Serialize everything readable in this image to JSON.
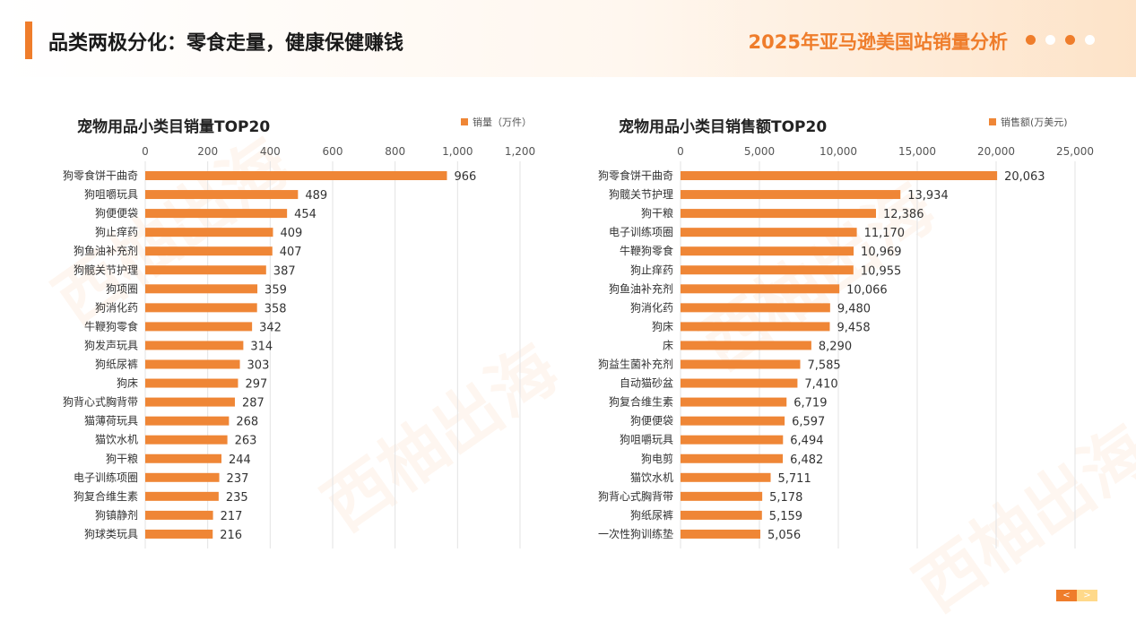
{
  "header": {
    "title": "品类两极分化：零食走量，健康保健赚钱",
    "report_title": "2025年亚马逊美国站销量分析",
    "dot_colors": [
      "#ef7d2b",
      "#ffffff",
      "#ef7d2b",
      "#ffffff"
    ]
  },
  "watermark": "西柚出海",
  "colors": {
    "accent": "#ef7d2b",
    "bar": "#ef8636",
    "grid": "#e3e3e3"
  },
  "chart_data": [
    {
      "type": "bar",
      "orientation": "horizontal",
      "title": "宠物用品小类目销量TOP20",
      "legend": "销量（万件）",
      "legend_position": "top-right",
      "axis_position": "top",
      "xlim": [
        0,
        1200
      ],
      "ticks": [
        0,
        200,
        400,
        600,
        800,
        1000,
        1200
      ],
      "tick_labels": [
        "0",
        "200",
        "400",
        "600",
        "800",
        "1,000",
        "1,200"
      ],
      "grid": true,
      "categories": [
        "狗零食饼干曲奇",
        "狗咀嚼玩具",
        "狗便便袋",
        "狗止痒药",
        "狗鱼油补充剂",
        "狗髋关节护理",
        "狗项圈",
        "狗消化药",
        "牛鞭狗零食",
        "狗发声玩具",
        "狗纸尿裤",
        "狗床",
        "狗背心式胸背带",
        "猫薄荷玩具",
        "猫饮水机",
        "狗干粮",
        "电子训练项圈",
        "狗复合维生素",
        "狗镇静剂",
        "狗球类玩具"
      ],
      "values": [
        966,
        489,
        454,
        409,
        407,
        387,
        359,
        358,
        342,
        314,
        303,
        297,
        287,
        268,
        263,
        244,
        237,
        235,
        217,
        216
      ],
      "value_labels": [
        "966",
        "489",
        "454",
        "409",
        "407",
        "387",
        "359",
        "358",
        "342",
        "314",
        "303",
        "297",
        "287",
        "268",
        "263",
        "244",
        "237",
        "235",
        "217",
        "216"
      ]
    },
    {
      "type": "bar",
      "orientation": "horizontal",
      "title": "宠物用品小类目销售额TOP20",
      "legend": "销售额(万美元)",
      "legend_position": "top-right",
      "axis_position": "top",
      "xlim": [
        0,
        25000
      ],
      "ticks": [
        0,
        5000,
        10000,
        15000,
        20000,
        25000
      ],
      "tick_labels": [
        "0",
        "5,000",
        "10,000",
        "15,000",
        "20,000",
        "25,000"
      ],
      "grid": true,
      "categories": [
        "狗零食饼干曲奇",
        "狗髋关节护理",
        "狗干粮",
        "电子训练项圈",
        "牛鞭狗零食",
        "狗止痒药",
        "狗鱼油补充剂",
        "狗消化药",
        "狗床",
        "床",
        "狗益生菌补充剂",
        "自动猫砂盆",
        "狗复合维生素",
        "狗便便袋",
        "狗咀嚼玩具",
        "狗电剪",
        "猫饮水机",
        "狗背心式胸背带",
        "狗纸尿裤",
        "一次性狗训练垫"
      ],
      "values": [
        20063,
        13934,
        12386,
        11170,
        10969,
        10955,
        10066,
        9480,
        9458,
        8290,
        7585,
        7410,
        6719,
        6597,
        6494,
        6482,
        5711,
        5178,
        5159,
        5056
      ],
      "value_labels": [
        "20,063",
        "13,934",
        "12,386",
        "11,170",
        "10,969",
        "10,955",
        "10,066",
        "9,480",
        "9,458",
        "8,290",
        "7,585",
        "7,410",
        "6,719",
        "6,597",
        "6,494",
        "6,482",
        "5,711",
        "5,178",
        "5,159",
        "5,056"
      ]
    }
  ],
  "pager": {
    "prev": "<",
    "next": ">"
  }
}
